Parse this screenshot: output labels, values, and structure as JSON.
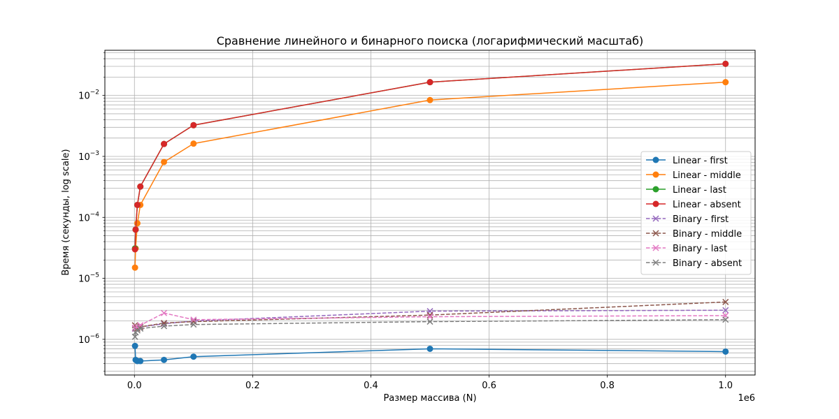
{
  "chart_data": {
    "type": "line",
    "title": "Сравнение линейного и бинарного поиска (логарифмический масштаб)",
    "xlabel": "Размер массива (N)",
    "ylabel": "Время (секунды, log scale)",
    "x_offset_label": "1e6",
    "xlim": [
      -50000,
      1050000
    ],
    "ylim": [
      2.6e-07,
      0.055
    ],
    "y_scale": "log",
    "grid": true,
    "legend_position": "center-right",
    "x_ticks": [
      {
        "value": 0,
        "label": "0.0"
      },
      {
        "value": 200000,
        "label": "0.2"
      },
      {
        "value": 400000,
        "label": "0.4"
      },
      {
        "value": 600000,
        "label": "0.6"
      },
      {
        "value": 800000,
        "label": "0.8"
      },
      {
        "value": 1000000,
        "label": "1.0"
      }
    ],
    "y_ticks": [
      {
        "value": 1e-06,
        "base": "10",
        "exp": "−6"
      },
      {
        "value": 1e-05,
        "base": "10",
        "exp": "−5"
      },
      {
        "value": 0.0001,
        "base": "10",
        "exp": "−4"
      },
      {
        "value": 0.001,
        "base": "10",
        "exp": "−3"
      },
      {
        "value": 0.01,
        "base": "10",
        "exp": "−2"
      }
    ],
    "x": [
      1000,
      2000,
      5000,
      10000,
      50000,
      100000,
      500000,
      1000000
    ],
    "series": [
      {
        "name": "Linear - first",
        "color": "#1f77b4",
        "dash": false,
        "marker": "circle",
        "values": [
          7.8e-07,
          4.6e-07,
          4.4e-07,
          4.4e-07,
          4.6e-07,
          5.2e-07,
          7e-07,
          6.3e-07
        ]
      },
      {
        "name": "Linear - middle",
        "color": "#ff7f0e",
        "dash": false,
        "marker": "circle",
        "values": [
          1.5e-05,
          3.1e-05,
          8e-05,
          0.00016,
          0.00081,
          0.00162,
          0.0084,
          0.0165
        ]
      },
      {
        "name": "Linear - last",
        "color": "#2ca02c",
        "dash": false,
        "marker": "circle",
        "values": [
          3.1e-05,
          6.3e-05,
          0.00016,
          0.00032,
          0.0016,
          0.00325,
          0.0165,
          0.033
        ]
      },
      {
        "name": "Linear - absent",
        "color": "#d62728",
        "dash": false,
        "marker": "circle",
        "values": [
          3e-05,
          6.3e-05,
          0.00016,
          0.00032,
          0.0016,
          0.00325,
          0.0165,
          0.033
        ]
      },
      {
        "name": "Binary - first",
        "color": "#9467bd",
        "dash": true,
        "marker": "x",
        "values": [
          1.5e-06,
          1.5e-06,
          1.6e-06,
          1.6e-06,
          1.8e-06,
          2e-06,
          2.9e-06,
          3e-06
        ]
      },
      {
        "name": "Binary - middle",
        "color": "#8c564b",
        "dash": true,
        "marker": "x",
        "values": [
          1.7e-06,
          1.5e-06,
          1.5e-06,
          1.6e-06,
          1.85e-06,
          1.95e-06,
          2.5e-06,
          4.1e-06
        ]
      },
      {
        "name": "Binary - last",
        "color": "#e377c2",
        "dash": true,
        "marker": "x",
        "values": [
          1.55e-06,
          1.5e-06,
          1.6e-06,
          1.7e-06,
          2.7e-06,
          2.1e-06,
          2.35e-06,
          2.45e-06
        ]
      },
      {
        "name": "Binary - absent",
        "color": "#7f7f7f",
        "dash": true,
        "marker": "x",
        "values": [
          1.1e-06,
          1.3e-06,
          1.4e-06,
          1.5e-06,
          1.65e-06,
          1.75e-06,
          1.95e-06,
          2.1e-06
        ]
      }
    ]
  }
}
